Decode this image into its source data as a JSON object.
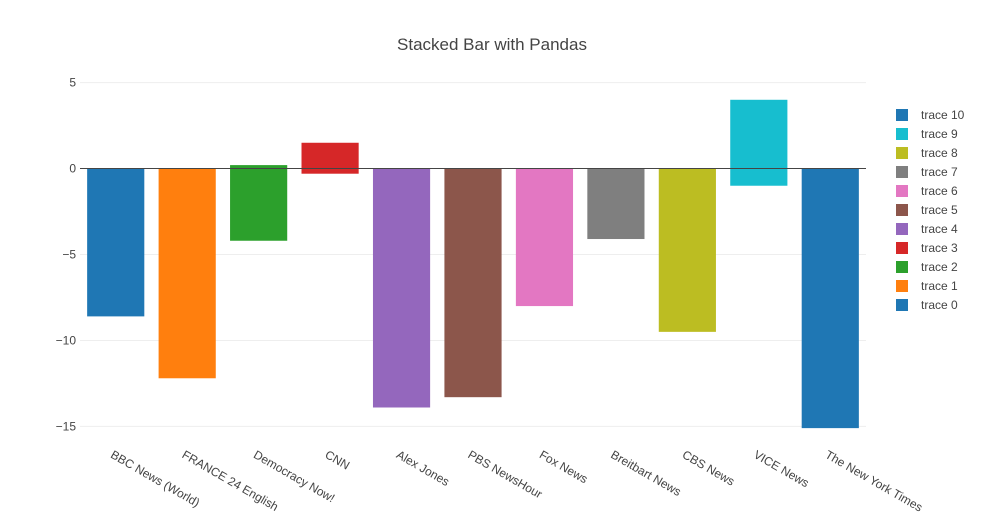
{
  "chart_data": {
    "type": "bar",
    "title": "Stacked Bar with Pandas",
    "xlabel": "",
    "ylabel": "",
    "ylim": [
      -15.5,
      5.5
    ],
    "yticks": [
      5,
      0,
      -5,
      -10,
      -15
    ],
    "ytick_labels": [
      "5",
      "0",
      "−5",
      "−10",
      "−15"
    ],
    "grid": true,
    "legend_position": "right",
    "categories": [
      "BBC News (World)",
      "FRANCE 24 English",
      "Democracy Now!",
      "CNN",
      "Alex Jones",
      "PBS NewsHour",
      "Fox News",
      "Breitbart News",
      "CBS News",
      "VICE News",
      "The New York Times"
    ],
    "series": [
      {
        "name": "trace 0",
        "color": "#1f77b4",
        "values": [
          -8.6,
          0,
          0,
          0,
          0,
          0,
          0,
          0,
          0,
          0,
          0
        ]
      },
      {
        "name": "trace 1",
        "color": "#ff7f0e",
        "values": [
          0,
          -12.2,
          0,
          0,
          0,
          0,
          0,
          0,
          0,
          0,
          0
        ]
      },
      {
        "name": "trace 2",
        "color": "#2ca02c",
        "values": [
          0,
          0,
          -4.2,
          0,
          0,
          0,
          0,
          0,
          0,
          0,
          0
        ]
      },
      {
        "name": "trace 3",
        "color": "#d62728",
        "values": [
          0,
          0,
          0,
          -0.3,
          0,
          0,
          0,
          0,
          0,
          0,
          0
        ]
      },
      {
        "name": "trace 4",
        "color": "#9467bd",
        "values": [
          0,
          0,
          0,
          0,
          -13.9,
          0,
          0,
          0,
          0,
          0,
          0
        ]
      },
      {
        "name": "trace 5",
        "color": "#8c564b",
        "values": [
          0,
          0,
          0,
          0,
          0,
          -13.3,
          0,
          0,
          0,
          0,
          0
        ]
      },
      {
        "name": "trace 6",
        "color": "#e377c2",
        "values": [
          0,
          0,
          0,
          0,
          0,
          0,
          -8.0,
          0,
          0,
          0,
          0
        ]
      },
      {
        "name": "trace 7",
        "color": "#7f7f7f",
        "values": [
          0,
          0,
          0,
          0,
          0,
          0,
          0,
          -4.1,
          0,
          0,
          0
        ]
      },
      {
        "name": "trace 8",
        "color": "#bcbd22",
        "values": [
          0,
          0,
          0,
          0,
          0,
          0,
          0,
          0,
          -9.5,
          0,
          0
        ]
      },
      {
        "name": "trace 9",
        "color": "#17becf",
        "values": [
          0,
          0,
          0,
          0,
          0,
          0,
          0,
          0,
          0,
          -1.0,
          0
        ]
      },
      {
        "name": "trace 10",
        "color": "#1f77b4",
        "values": [
          0,
          0,
          0,
          0,
          0,
          0,
          0,
          0,
          0,
          0,
          -15.1
        ]
      }
    ],
    "positive_series": [
      {
        "name": "trace 2",
        "color": "#2ca02c",
        "values": [
          0,
          0,
          0.2,
          0,
          0,
          0,
          0,
          0,
          0,
          0,
          0
        ]
      },
      {
        "name": "trace 3",
        "color": "#d62728",
        "values": [
          0,
          0,
          0,
          1.5,
          0,
          0,
          0,
          0,
          0,
          0,
          0
        ]
      },
      {
        "name": "trace 9",
        "color": "#17becf",
        "values": [
          0,
          0,
          0,
          0,
          0,
          0,
          0,
          0,
          0,
          4.0,
          0
        ]
      }
    ],
    "legend_order": [
      "trace 10",
      "trace 9",
      "trace 8",
      "trace 7",
      "trace 6",
      "trace 5",
      "trace 4",
      "trace 3",
      "trace 2",
      "trace 1",
      "trace 0"
    ]
  }
}
